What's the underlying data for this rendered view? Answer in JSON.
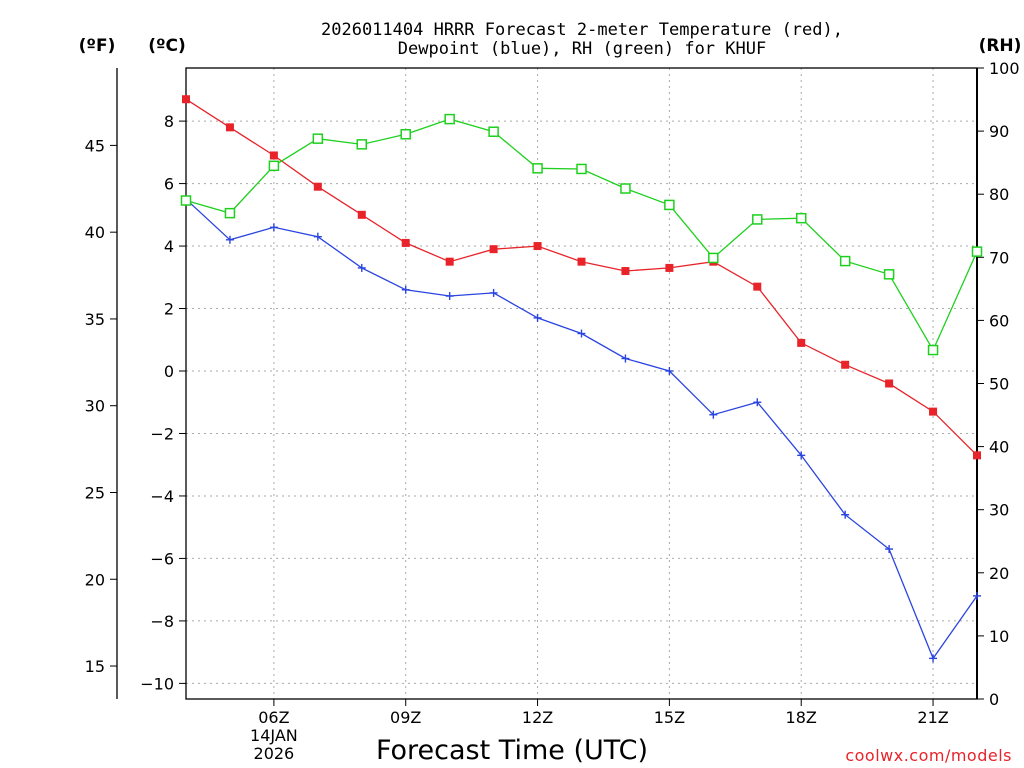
{
  "chart_data": {
    "type": "line",
    "title_line1": "2026011404 HRRR Forecast 2-meter Temperature (red),",
    "title_line2": "Dewpoint (blue), RH (green) for KHUF",
    "unit_f": "(ºF)",
    "unit_c": "(ºC)",
    "unit_rh": "(RH)",
    "xlabel": "Forecast Time (UTC)",
    "credit": "coolwx.com/models",
    "x_hours": [
      4,
      5,
      6,
      7,
      8,
      9,
      10,
      11,
      12,
      13,
      14,
      15,
      16,
      17,
      18,
      19,
      20,
      21,
      22
    ],
    "x_range": [
      4,
      22
    ],
    "x_ticks": [
      {
        "hour": 6,
        "label": "06Z",
        "sub1": "14JAN",
        "sub2": "2026"
      },
      {
        "hour": 9,
        "label": "09Z"
      },
      {
        "hour": 12,
        "label": "12Z"
      },
      {
        "hour": 15,
        "label": "15Z"
      },
      {
        "hour": 18,
        "label": "18Z"
      },
      {
        "hour": 21,
        "label": "21Z"
      }
    ],
    "celsius_range": [
      -10.5,
      9.7
    ],
    "celsius_ticks": [
      8,
      6,
      4,
      2,
      0,
      -2,
      -4,
      -6,
      -8,
      -10
    ],
    "celsius_tick_labels": [
      "8",
      "6",
      "4",
      "2",
      "0",
      "−2",
      "−4",
      "−6",
      "−8",
      "−10"
    ],
    "fahrenheit_ticks": [
      45,
      40,
      35,
      30,
      25,
      20,
      15
    ],
    "fahrenheit_tick_labels": [
      "45",
      "40",
      "35",
      "30",
      "25",
      "20",
      "15"
    ],
    "rh_range": [
      0,
      100
    ],
    "rh_ticks": [
      0,
      10,
      20,
      30,
      40,
      50,
      60,
      70,
      80,
      90,
      100
    ],
    "rh_tick_labels": [
      "0",
      "10",
      "20",
      "30",
      "40",
      "50",
      "60",
      "70",
      "80",
      "90",
      "100"
    ],
    "series": [
      {
        "name": "2-meter Temperature",
        "axis": "celsius",
        "color": "#e8232a",
        "marker": "filled-square",
        "values": [
          8.7,
          7.8,
          6.9,
          5.9,
          5.0,
          4.1,
          3.5,
          3.9,
          4.0,
          3.5,
          3.2,
          3.3,
          3.5,
          2.7,
          0.9,
          0.2,
          -0.4,
          -1.3,
          -2.7
        ]
      },
      {
        "name": "Dewpoint",
        "axis": "celsius",
        "color": "#2a44e0",
        "marker": "plus",
        "values": [
          5.5,
          4.2,
          4.6,
          4.3,
          3.3,
          2.6,
          2.4,
          2.5,
          1.7,
          1.2,
          0.4,
          0.0,
          -1.4,
          -1.0,
          -2.7,
          -4.6,
          -5.7,
          -9.2,
          -7.2
        ]
      },
      {
        "name": "Relative Humidity",
        "axis": "rh",
        "color": "#1ed01e",
        "marker": "open-square",
        "values": [
          79,
          77,
          84.5,
          88.8,
          87.9,
          89.5,
          91.9,
          89.9,
          84.1,
          84.0,
          80.9,
          78.3,
          69.9,
          76.0,
          76.2,
          69.4,
          67.3,
          55.3,
          70.9
        ]
      }
    ]
  }
}
